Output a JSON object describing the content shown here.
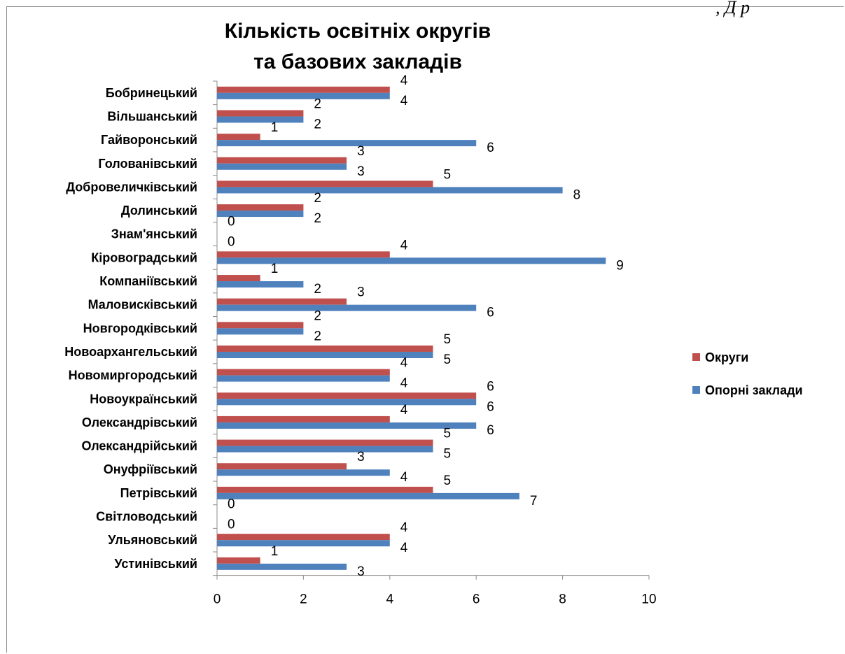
{
  "corner_text": ", Д р",
  "chart_data": {
    "type": "bar",
    "orientation": "horizontal",
    "title": [
      "Кількість освітніх округів",
      "та базових закладів"
    ],
    "categories": [
      "Бобринецький",
      "Вільшанський",
      "Гайворонський",
      "Голованівський",
      "Добровеличківський",
      "Долинський",
      "Знам'янський",
      "Кіровоградський",
      "Компаніївський",
      "Маловисківський",
      "Новгородківський",
      "Новоархангельський",
      "Новомиргородський",
      "Новоукраїнський",
      "Олександрівський",
      "Олександрійський",
      "Онуфріївський",
      "Петрівський",
      "Світловодський",
      "Ульяновський",
      "Устинівський"
    ],
    "series": [
      {
        "name": "Округи",
        "color": "#C0504D",
        "values": [
          4,
          2,
          1,
          3,
          5,
          2,
          0,
          4,
          1,
          3,
          2,
          5,
          4,
          6,
          4,
          5,
          3,
          5,
          0,
          4,
          1
        ]
      },
      {
        "name": "Опорні заклади",
        "color": "#4F81BD",
        "values": [
          4,
          2,
          6,
          3,
          8,
          2,
          0,
          9,
          2,
          6,
          2,
          5,
          4,
          6,
          6,
          5,
          4,
          7,
          0,
          4,
          3
        ]
      }
    ],
    "xlim": [
      0,
      10
    ],
    "x_ticks": [
      "0",
      "2",
      "4",
      "6",
      "8",
      "10"
    ],
    "grid": false,
    "legend_position": "right"
  }
}
